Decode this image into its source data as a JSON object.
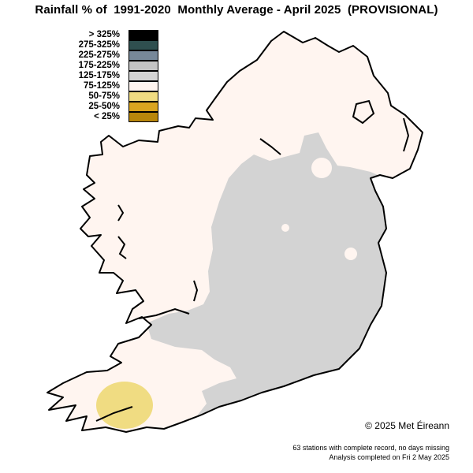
{
  "title": "Rainfall % of  1991-2020  Monthly Average - April 2025  (PROVISIONAL)",
  "legend": [
    {
      "label": "> 325%",
      "color": "#000000"
    },
    {
      "label": "275-325%",
      "color": "#2f4f4f"
    },
    {
      "label": "225-275%",
      "color": "#778899"
    },
    {
      "label": "175-225%",
      "color": "#c4c4c4"
    },
    {
      "label": "125-175%",
      "color": "#d3d3d3"
    },
    {
      "label": "75-125%",
      "color": "#fff5f0"
    },
    {
      "label": "50-75%",
      "color": "#f0dc82"
    },
    {
      "label": "25-50%",
      "color": "#daa520"
    },
    {
      "label": "< 25%",
      "color": "#b8860b"
    }
  ],
  "map_colors": {
    "land_default": "#fff5f0",
    "wet_zone": "#d3d3d3",
    "dry_zone": "#f0dc82",
    "coast": "#000000"
  },
  "copyright": "© 2025 Met Éireann",
  "footnote1": "63 stations with complete record, no days missing",
  "footnote2": "Analysis completed on Fri 2 May 2025"
}
